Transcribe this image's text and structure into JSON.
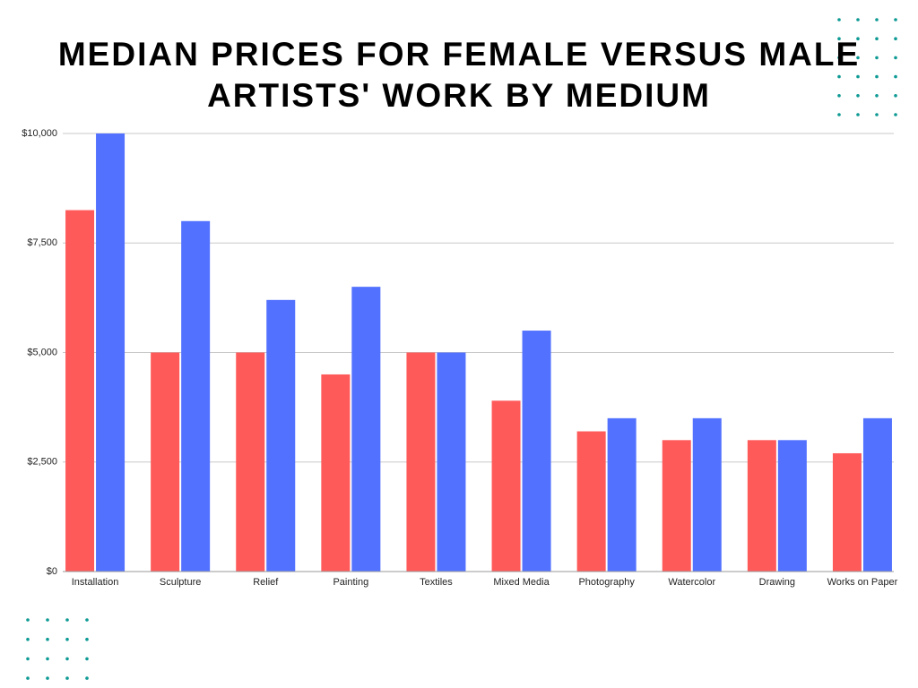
{
  "chart_data": {
    "type": "bar",
    "title": "MEDIAN PRICES FOR FEMALE VERSUS MALE ARTISTS' WORK BY MEDIUM",
    "categories": [
      "Installation",
      "Sculpture",
      "Relief",
      "Painting",
      "Textiles",
      "Mixed Media",
      "Photography",
      "Watercolor",
      "Drawing",
      "Works on Paper"
    ],
    "series": [
      {
        "color": "#ff5a5a",
        "values": [
          8250,
          5000,
          5000,
          4500,
          5000,
          3900,
          3200,
          3000,
          3000,
          2700
        ]
      },
      {
        "color": "#5271ff",
        "values": [
          10000,
          8000,
          6200,
          6500,
          5000,
          5500,
          3500,
          3500,
          3000,
          3500
        ]
      }
    ],
    "ylim": [
      0,
      10000
    ],
    "yticks": [
      {
        "value": 0,
        "label": "$0"
      },
      {
        "value": 2500,
        "label": "$2,500"
      },
      {
        "value": 5000,
        "label": "$5,000"
      },
      {
        "value": 7500,
        "label": "$7,500"
      },
      {
        "value": 10000,
        "label": "$10,000"
      }
    ],
    "grid": true
  }
}
